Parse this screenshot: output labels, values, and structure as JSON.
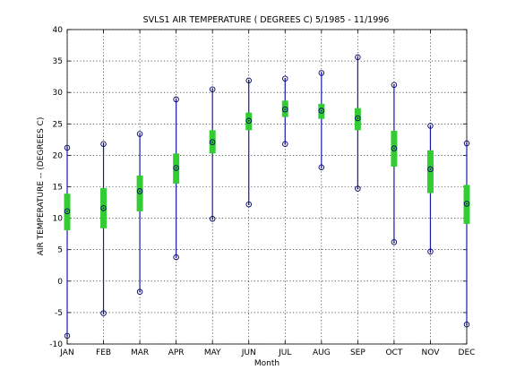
{
  "chart_data": {
    "type": "box",
    "title": "SVLS1  AIR TEMPERATURE ( DEGREES C) 5/1985 - 11/1996",
    "xlabel": "Month",
    "ylabel": "AIR TEMPERATURE -- (DEGREES C)",
    "categories": [
      "JAN",
      "FEB",
      "MAR",
      "APR",
      "MAY",
      "JUN",
      "JUL",
      "AUG",
      "SEP",
      "OCT",
      "NOV",
      "DEC"
    ],
    "ylim": [
      -10,
      40
    ],
    "yticks": [
      -10,
      -5,
      0,
      5,
      10,
      15,
      20,
      25,
      30,
      35,
      40
    ],
    "grid": true,
    "min": [
      -8.7,
      -5.1,
      -1.7,
      3.8,
      9.9,
      12.2,
      21.8,
      18.1,
      14.7,
      6.2,
      4.7,
      -6.9
    ],
    "max": [
      21.2,
      21.8,
      23.4,
      28.9,
      30.5,
      31.9,
      32.2,
      33.1,
      35.6,
      31.2,
      24.7,
      21.9
    ],
    "median": [
      11.1,
      11.6,
      14.3,
      18.0,
      22.1,
      25.5,
      27.3,
      27.1,
      25.9,
      21.1,
      17.8,
      12.3
    ],
    "q1": [
      8.1,
      8.4,
      11.1,
      15.5,
      20.3,
      24.0,
      26.1,
      25.8,
      24.0,
      18.2,
      14.0,
      9.1
    ],
    "q3": [
      13.9,
      14.8,
      16.8,
      20.3,
      24.0,
      26.8,
      28.7,
      28.2,
      27.5,
      23.9,
      20.8,
      15.3
    ],
    "colors": {
      "whisker": "#1a1aa6",
      "box": "#33cc33",
      "marker": "#000066",
      "grid": "#000000"
    }
  }
}
